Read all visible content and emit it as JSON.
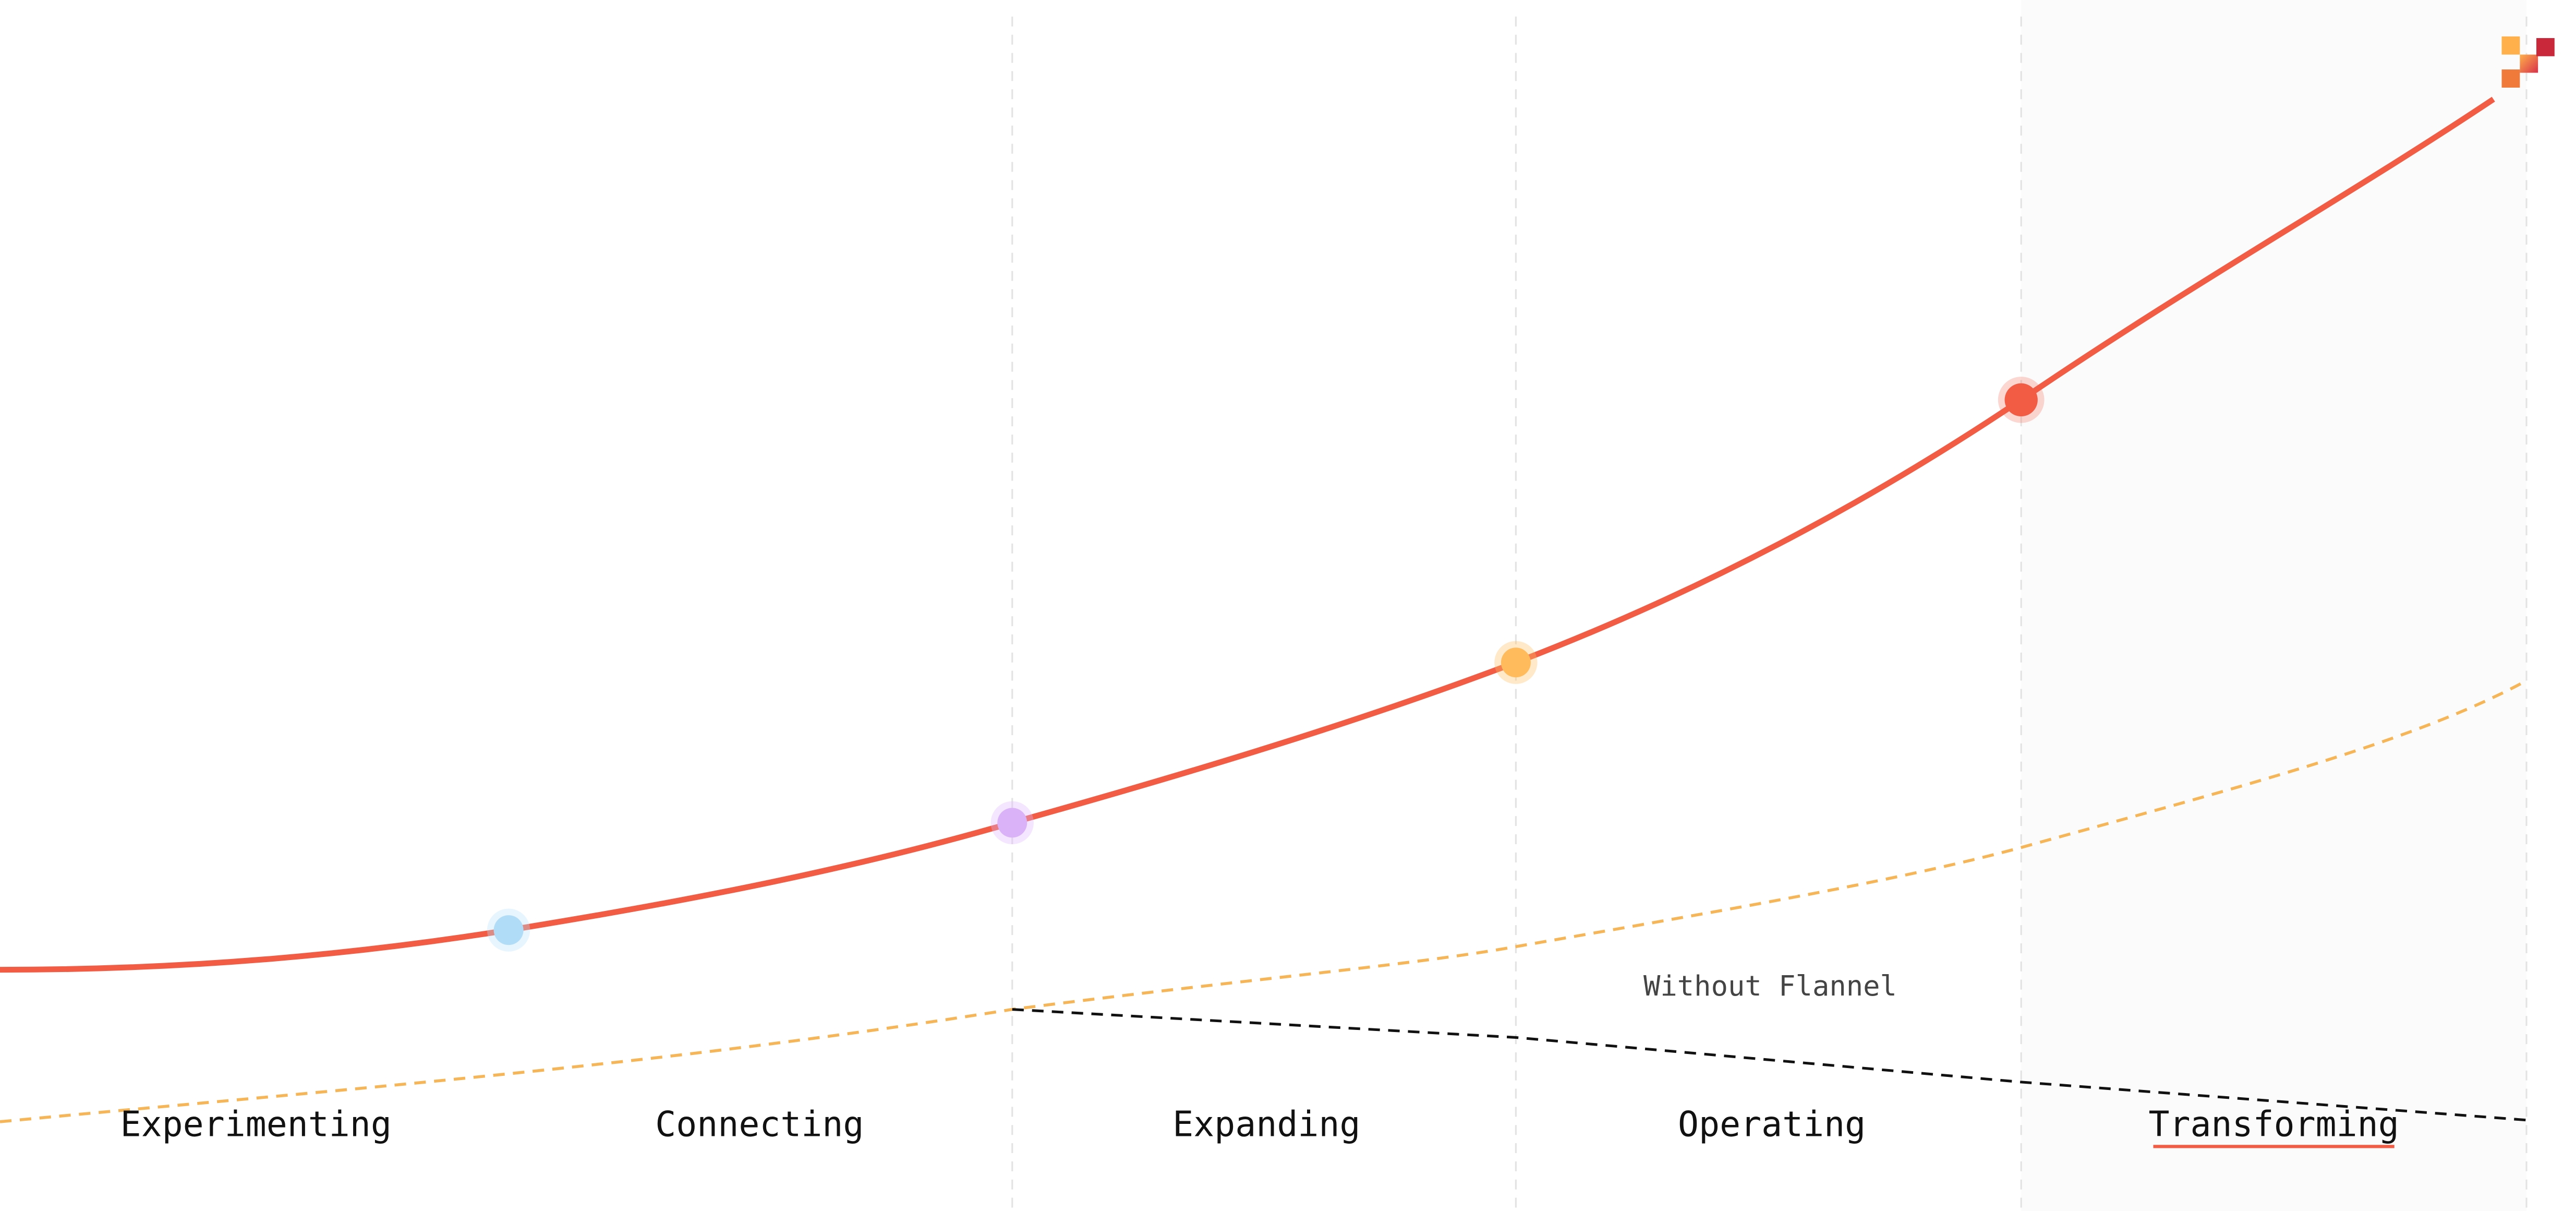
{
  "stages": [
    {
      "label": "Experimenting"
    },
    {
      "label": "Connecting"
    },
    {
      "label": "Expanding"
    },
    {
      "label": "Operating"
    },
    {
      "label": "Transforming"
    }
  ],
  "annotation": "Without Flannel"
}
